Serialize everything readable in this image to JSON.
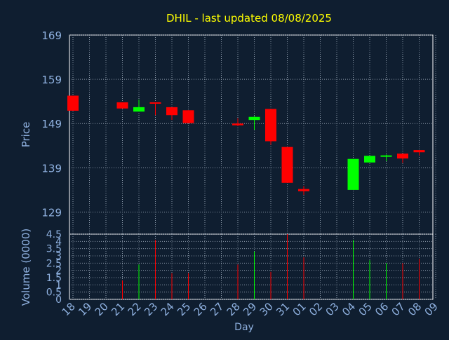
{
  "chart_data": [
    {
      "type": "candlestick",
      "title": "DHIL - last updated 08/08/2025",
      "ylabel": "Price",
      "ylim": [
        124,
        169
      ],
      "yticks": [
        169,
        159,
        149,
        139,
        129
      ],
      "grid": true,
      "categories": [
        "18",
        "19",
        "20",
        "21",
        "22",
        "23",
        "24",
        "25",
        "26",
        "27",
        "28",
        "29",
        "30",
        "31",
        "01",
        "02",
        "03",
        "04",
        "05",
        "06",
        "07",
        "08",
        "09"
      ],
      "colors": {
        "up": "#00ff00",
        "down": "#ff0000",
        "background": "#0f1e30",
        "axis_text": "#8fb1e0",
        "title": "#ffff00"
      },
      "candles": [
        {
          "x": "18",
          "open": 155.3,
          "high": 155.3,
          "low": 151.9,
          "close": 151.9
        },
        {
          "x": "21",
          "open": 153.8,
          "high": 153.8,
          "low": 152.4,
          "close": 152.4
        },
        {
          "x": "22",
          "open": 151.7,
          "high": 154.4,
          "low": 151.7,
          "close": 152.7
        },
        {
          "x": "23",
          "open": 153.8,
          "high": 153.8,
          "low": 150.9,
          "close": 153.5
        },
        {
          "x": "24",
          "open": 152.7,
          "high": 152.7,
          "low": 149.8,
          "close": 150.9
        },
        {
          "x": "25",
          "open": 152.0,
          "high": 152.0,
          "low": 149.1,
          "close": 149.1
        },
        {
          "x": "28",
          "open": 149.0,
          "high": 150.2,
          "low": 148.4,
          "close": 148.6
        },
        {
          "x": "29",
          "open": 149.8,
          "high": 150.7,
          "low": 147.6,
          "close": 150.5
        },
        {
          "x": "30",
          "open": 152.3,
          "high": 152.3,
          "low": 144.2,
          "close": 145.0
        },
        {
          "x": "31",
          "open": 143.7,
          "high": 143.7,
          "low": 135.6,
          "close": 135.6
        },
        {
          "x": "01",
          "open": 134.2,
          "high": 134.9,
          "low": 132.9,
          "close": 133.7
        },
        {
          "x": "04",
          "open": 134.0,
          "high": 141.0,
          "low": 134.0,
          "close": 141.0
        },
        {
          "x": "05",
          "open": 140.2,
          "high": 141.7,
          "low": 140.2,
          "close": 141.7
        },
        {
          "x": "06",
          "open": 141.5,
          "high": 142.0,
          "low": 140.5,
          "close": 141.8
        },
        {
          "x": "07",
          "open": 142.2,
          "high": 142.2,
          "low": 140.1,
          "close": 141.1
        },
        {
          "x": "08",
          "open": 143.0,
          "high": 143.0,
          "low": 141.8,
          "close": 142.5
        }
      ]
    },
    {
      "type": "bar",
      "ylabel": "Volume (0000)",
      "xlabel": "Day",
      "ylim": [
        0,
        4.5
      ],
      "yticks": [
        "0",
        "0.5",
        "1",
        "1.5",
        "2",
        "2.5",
        "3",
        "3.5",
        "4",
        "4.5"
      ],
      "grid": true,
      "categories": [
        "18",
        "19",
        "20",
        "21",
        "22",
        "23",
        "24",
        "25",
        "26",
        "27",
        "28",
        "29",
        "30",
        "31",
        "01",
        "02",
        "03",
        "04",
        "05",
        "06",
        "07",
        "08",
        "09"
      ],
      "bars": [
        {
          "x": "21",
          "value": 1.3,
          "color": "#ff0000"
        },
        {
          "x": "22",
          "value": 2.4,
          "color": "#00ff00"
        },
        {
          "x": "23",
          "value": 4.1,
          "color": "#ff0000"
        },
        {
          "x": "24",
          "value": 1.8,
          "color": "#ff0000"
        },
        {
          "x": "25",
          "value": 1.8,
          "color": "#ff0000"
        },
        {
          "x": "28",
          "value": 2.4,
          "color": "#ff0000"
        },
        {
          "x": "29",
          "value": 3.3,
          "color": "#00ff00"
        },
        {
          "x": "30",
          "value": 1.9,
          "color": "#ff0000"
        },
        {
          "x": "31",
          "value": 4.5,
          "color": "#ff0000"
        },
        {
          "x": "01",
          "value": 2.9,
          "color": "#ff0000"
        },
        {
          "x": "04",
          "value": 4.1,
          "color": "#00ff00"
        },
        {
          "x": "05",
          "value": 2.7,
          "color": "#00ff00"
        },
        {
          "x": "06",
          "value": 2.5,
          "color": "#00ff00"
        },
        {
          "x": "07",
          "value": 2.5,
          "color": "#ff0000"
        },
        {
          "x": "08",
          "value": 2.8,
          "color": "#ff0000"
        }
      ]
    }
  ]
}
